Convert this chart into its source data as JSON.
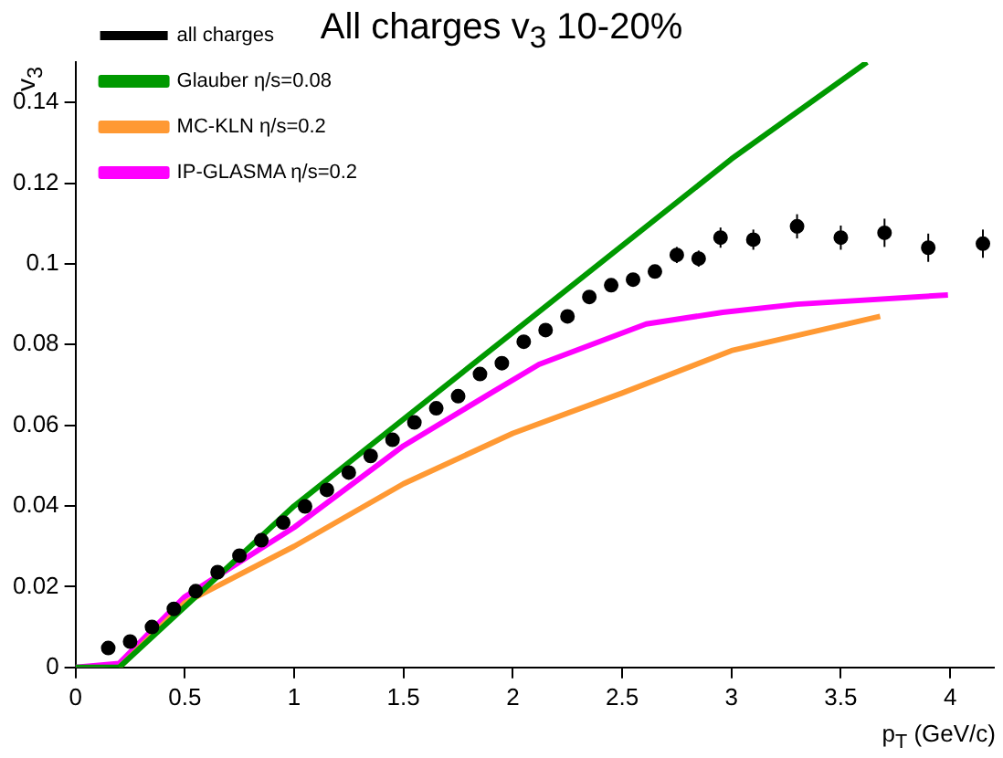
{
  "chart_data": {
    "type": "scatter",
    "title": "All charges v$_{3}$ 10-20%",
    "xlabel": "p$_{T}$ (GeV/c)",
    "ylabel": "v$_{3}$",
    "xlim": [
      0,
      4.2
    ],
    "ylim": [
      0,
      0.15
    ],
    "xticks": [
      0,
      0.5,
      1,
      1.5,
      2,
      2.5,
      3,
      3.5,
      4
    ],
    "yticks": [
      0,
      0.02,
      0.04,
      0.06,
      0.08,
      0.1,
      0.12,
      0.14
    ],
    "grid": false,
    "legend": "top left",
    "series": [
      {
        "name": "all charges",
        "marker": "circle",
        "color": "#000000",
        "x": [
          0.15,
          0.25,
          0.35,
          0.45,
          0.55,
          0.65,
          0.75,
          0.85,
          0.95,
          1.05,
          1.15,
          1.25,
          1.35,
          1.45,
          1.55,
          1.65,
          1.75,
          1.85,
          1.95,
          2.05,
          2.15,
          2.25,
          2.35,
          2.45,
          2.55,
          2.65,
          2.75,
          2.85,
          2.95,
          3.1,
          3.3,
          3.5,
          3.7,
          3.9,
          4.15
        ],
        "values": [
          0.0048,
          0.0064,
          0.01,
          0.0145,
          0.0189,
          0.0236,
          0.0277,
          0.0315,
          0.0359,
          0.0399,
          0.044,
          0.0483,
          0.0524,
          0.0564,
          0.0607,
          0.0642,
          0.0672,
          0.0727,
          0.0754,
          0.0807,
          0.0836,
          0.087,
          0.0918,
          0.0947,
          0.0961,
          0.0981,
          0.1022,
          0.1013,
          0.1065,
          0.106,
          0.1093,
          0.1065,
          0.1077,
          0.104,
          0.105
        ],
        "errors": [
          null,
          null,
          null,
          null,
          null,
          null,
          null,
          null,
          null,
          null,
          null,
          null,
          null,
          null,
          null,
          null,
          null,
          null,
          null,
          null,
          null,
          null,
          null,
          null,
          null,
          null,
          0.002,
          0.002,
          0.0025,
          0.0025,
          0.003,
          0.003,
          0.0035,
          0.0035,
          0.0035
        ]
      },
      {
        "name": "Glauber η/s=0.08",
        "type": "line",
        "color": "#009900",
        "x": [
          0,
          0.2,
          1,
          2,
          3,
          3.62
        ],
        "values": [
          0,
          0,
          0.04,
          0.083,
          0.126,
          0.15
        ]
      },
      {
        "name": "MC-KLN η/s=0.2",
        "type": "line",
        "color": "#ff9933",
        "x": [
          0.2,
          0.5,
          1,
          1.5,
          2,
          2.5,
          3,
          3.68
        ],
        "values": [
          0,
          0.016,
          0.03,
          0.0455,
          0.058,
          0.068,
          0.0785,
          0.087
        ]
      },
      {
        "name": "IP-GLASMA η/s=0.2",
        "type": "line",
        "color": "#ff00ff",
        "x": [
          0,
          0.2,
          0.5,
          1,
          1.5,
          1.9,
          2.12,
          2.61,
          2.96,
          3.3,
          3.99
        ],
        "values": [
          0,
          0.001,
          0.0175,
          0.0347,
          0.0549,
          0.068,
          0.0751,
          0.0851,
          0.088,
          0.09,
          0.0923
        ]
      }
    ]
  }
}
